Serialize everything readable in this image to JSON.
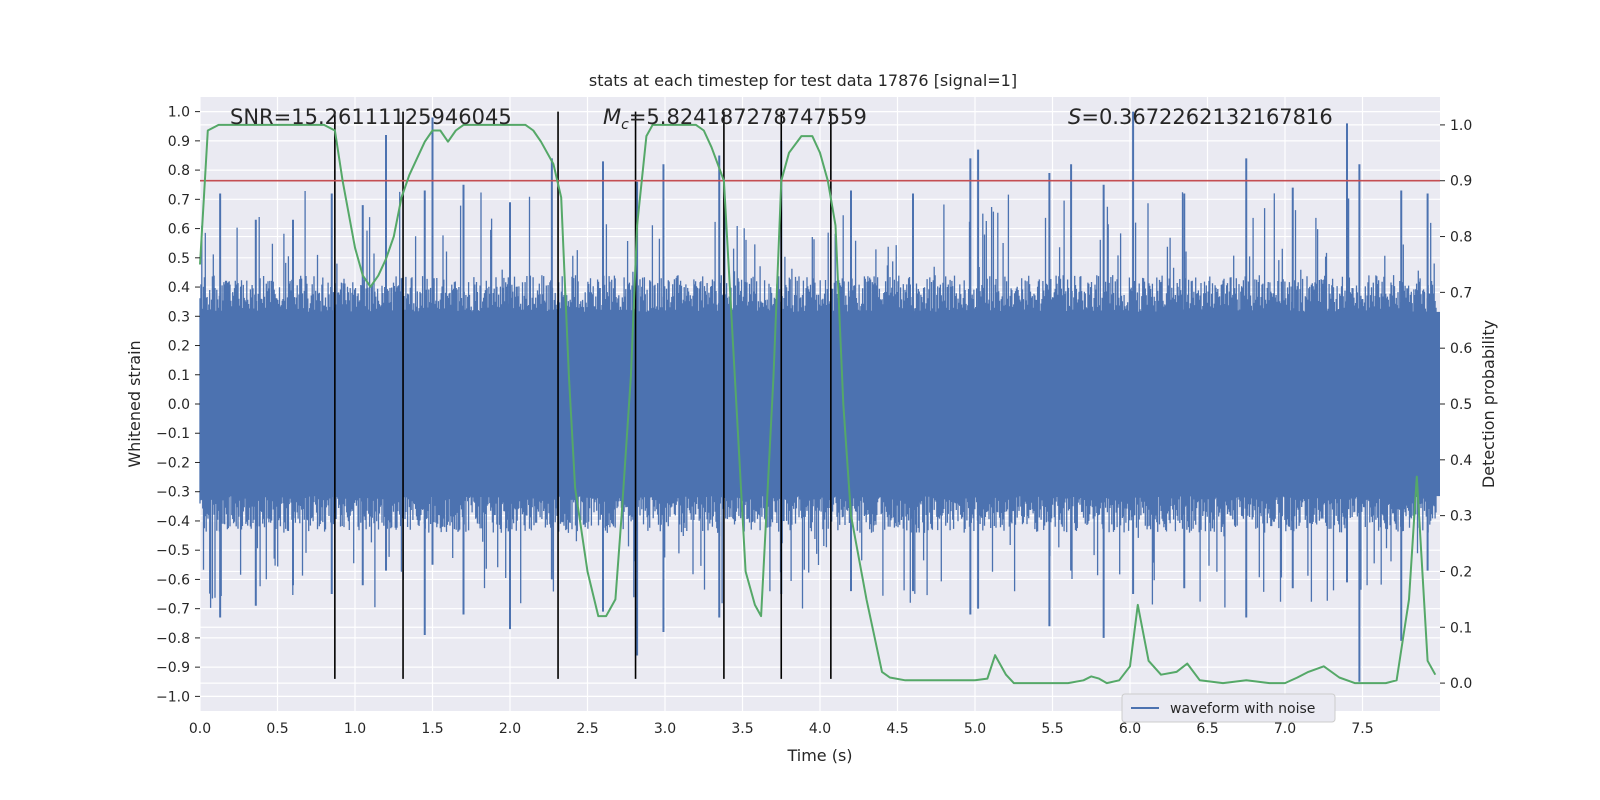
{
  "chart_data": {
    "type": "line",
    "title": "stats at each timestep for test data 17876 [signal=1]",
    "xlabel": "Time (s)",
    "ylabel": "Whitened strain",
    "ylabel_right": "Detection probability",
    "xlim": [
      0.0,
      8.0
    ],
    "ylim": [
      -1.05,
      1.05
    ],
    "ylim_right": [
      -0.05,
      1.05
    ],
    "x_ticks": [
      "0.0",
      "0.5",
      "1.0",
      "1.5",
      "2.0",
      "2.5",
      "3.0",
      "3.5",
      "4.0",
      "4.5",
      "5.0",
      "5.5",
      "6.0",
      "6.5",
      "7.0",
      "7.5"
    ],
    "y_ticks": [
      "1.0",
      "0.9",
      "0.8",
      "0.7",
      "0.6",
      "0.5",
      "0.4",
      "0.3",
      "0.2",
      "0.1",
      "0.0",
      "−0.1",
      "−0.2",
      "−0.3",
      "−0.4",
      "−0.5",
      "−0.6",
      "−0.7",
      "−0.8",
      "−0.9",
      "−1.0"
    ],
    "y_right_ticks": [
      "1.0",
      "0.9",
      "0.8",
      "0.7",
      "0.6",
      "0.5",
      "0.4",
      "0.3",
      "0.2",
      "0.1",
      "0.0"
    ],
    "grid": true,
    "legend_position": "lower-center-right",
    "annotations": {
      "snr": "SNR=15.26111125946045",
      "mc_symbol": "M",
      "mc_sub": "c",
      "mc_value": "=5.824187278747559",
      "s_symbol": "S",
      "s_value": "=0.3672262132167816"
    },
    "threshold": 0.9,
    "vlines": [
      0.87,
      1.31,
      2.31,
      2.81,
      3.38,
      3.75,
      4.07
    ],
    "waveform_spikes": [
      {
        "x": 0.13,
        "top": 0.72,
        "bot": -0.73
      },
      {
        "x": 0.36,
        "top": 0.63,
        "bot": -0.69
      },
      {
        "x": 0.6,
        "top": 0.63,
        "bot": -0.62
      },
      {
        "x": 0.85,
        "top": 0.72,
        "bot": -0.65
      },
      {
        "x": 1.05,
        "top": 0.68,
        "bot": -0.62
      },
      {
        "x": 1.2,
        "top": 0.92,
        "bot": -0.57
      },
      {
        "x": 1.45,
        "top": 0.73,
        "bot": -0.79
      },
      {
        "x": 1.5,
        "top": 0.98,
        "bot": -0.55
      },
      {
        "x": 1.7,
        "top": 0.75,
        "bot": -0.72
      },
      {
        "x": 2.0,
        "top": 0.69,
        "bot": -0.77
      },
      {
        "x": 2.27,
        "top": 0.84,
        "bot": -0.6
      },
      {
        "x": 2.6,
        "top": 0.83,
        "bot": -0.71
      },
      {
        "x": 2.82,
        "top": 0.76,
        "bot": -0.86
      },
      {
        "x": 2.99,
        "top": 0.82,
        "bot": -0.78
      },
      {
        "x": 3.35,
        "top": 0.85,
        "bot": -0.73
      },
      {
        "x": 3.75,
        "top": 0.9,
        "bot": -0.65
      },
      {
        "x": 4.2,
        "top": 0.73,
        "bot": -0.64
      },
      {
        "x": 4.6,
        "top": 0.72,
        "bot": -0.64
      },
      {
        "x": 4.97,
        "top": 0.84,
        "bot": -0.72
      },
      {
        "x": 5.02,
        "top": 0.87,
        "bot": -0.7
      },
      {
        "x": 5.48,
        "top": 0.79,
        "bot": -0.76
      },
      {
        "x": 5.62,
        "top": 0.82,
        "bot": -0.57
      },
      {
        "x": 5.83,
        "top": 0.75,
        "bot": -0.8
      },
      {
        "x": 6.02,
        "top": 1.0,
        "bot": -0.65
      },
      {
        "x": 6.35,
        "top": 0.72,
        "bot": -0.63
      },
      {
        "x": 6.75,
        "top": 0.84,
        "bot": -0.73
      },
      {
        "x": 7.05,
        "top": 0.74,
        "bot": -0.63
      },
      {
        "x": 7.4,
        "top": 0.96,
        "bot": -0.61
      },
      {
        "x": 7.48,
        "top": 0.82,
        "bot": -0.95
      },
      {
        "x": 7.75,
        "top": 0.73,
        "bot": -0.81
      },
      {
        "x": 7.92,
        "top": 0.72,
        "bot": -0.57
      }
    ],
    "series": [
      {
        "name": "waveform with noise",
        "color": "#4c72b0",
        "axis": "left",
        "style": "dense-noise",
        "envelope": 0.42,
        "seed": 17876
      },
      {
        "name": "detection probability",
        "color": "#55a868",
        "axis": "right",
        "x": [
          0.0,
          0.05,
          0.12,
          0.2,
          0.4,
          0.6,
          0.7,
          0.8,
          0.87,
          0.92,
          1.0,
          1.05,
          1.1,
          1.15,
          1.2,
          1.25,
          1.3,
          1.35,
          1.4,
          1.45,
          1.5,
          1.55,
          1.6,
          1.65,
          1.7,
          1.75,
          1.8,
          1.9,
          2.0,
          2.1,
          2.15,
          2.2,
          2.28,
          2.33,
          2.38,
          2.42,
          2.5,
          2.57,
          2.62,
          2.68,
          2.72,
          2.78,
          2.82,
          2.88,
          2.92,
          3.0,
          3.1,
          3.2,
          3.25,
          3.3,
          3.38,
          3.45,
          3.52,
          3.58,
          3.62,
          3.7,
          3.75,
          3.8,
          3.88,
          3.95,
          4.0,
          4.05,
          4.1,
          4.15,
          4.2,
          4.3,
          4.4,
          4.45,
          4.55,
          4.7,
          5.0,
          5.08,
          5.13,
          5.2,
          5.25,
          5.3,
          5.45,
          5.6,
          5.7,
          5.75,
          5.8,
          5.85,
          5.93,
          6.0,
          6.05,
          6.12,
          6.2,
          6.3,
          6.37,
          6.45,
          6.6,
          6.75,
          6.9,
          7.0,
          7.08,
          7.15,
          7.25,
          7.35,
          7.45,
          7.55,
          7.65,
          7.72,
          7.8,
          7.85,
          7.92,
          7.97
        ],
        "y": [
          0.75,
          0.99,
          1.0,
          1.0,
          1.0,
          1.0,
          1.0,
          1.0,
          0.99,
          0.9,
          0.78,
          0.73,
          0.71,
          0.73,
          0.76,
          0.8,
          0.87,
          0.91,
          0.94,
          0.97,
          0.99,
          0.99,
          0.97,
          0.99,
          1.0,
          1.0,
          1.0,
          1.0,
          1.0,
          1.0,
          0.99,
          0.97,
          0.93,
          0.87,
          0.55,
          0.35,
          0.2,
          0.12,
          0.12,
          0.15,
          0.3,
          0.55,
          0.82,
          0.98,
          1.0,
          1.0,
          1.0,
          1.0,
          0.99,
          0.96,
          0.9,
          0.55,
          0.2,
          0.14,
          0.12,
          0.55,
          0.9,
          0.95,
          0.98,
          0.98,
          0.95,
          0.9,
          0.82,
          0.5,
          0.3,
          0.15,
          0.02,
          0.01,
          0.005,
          0.005,
          0.005,
          0.008,
          0.05,
          0.015,
          0.0,
          0.0,
          0.0,
          0.0,
          0.005,
          0.012,
          0.008,
          0.0,
          0.005,
          0.03,
          0.14,
          0.04,
          0.015,
          0.02,
          0.035,
          0.005,
          0.0,
          0.005,
          0.0,
          0.0,
          0.01,
          0.02,
          0.03,
          0.01,
          0.0,
          0.0,
          0.0,
          0.005,
          0.15,
          0.37,
          0.04,
          0.015
        ]
      },
      {
        "name": "threshold",
        "color": "#c44e52",
        "axis": "right",
        "y": [
          0.9,
          0.9
        ]
      },
      {
        "name": "event markers",
        "color": "#000000",
        "axis": "left",
        "y_range": [
          -0.94,
          1.0
        ]
      }
    ],
    "legend": [
      "waveform with noise"
    ]
  },
  "colors": {
    "plot_bg": "#eaeaf2",
    "grid": "#ffffff",
    "waveform": "#4c72b0",
    "probability": "#55a868",
    "threshold": "#c44e52",
    "vlines": "#000000"
  }
}
